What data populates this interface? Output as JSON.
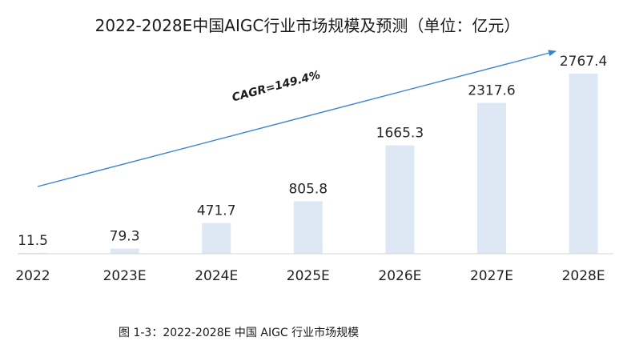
{
  "chart_data": {
    "type": "bar",
    "title": "2022-2028E中国AIGC行业市场规模及预测（单位：亿元）",
    "categories": [
      "2022",
      "2023E",
      "2024E",
      "2025E",
      "2026E",
      "2027E",
      "2028E"
    ],
    "values": [
      11.5,
      79.3,
      471.7,
      805.8,
      1665.3,
      2317.6,
      2767.4
    ],
    "value_labels": [
      "11.5",
      "79.3",
      "471.7",
      "805.8",
      "1665.3",
      "2317.6",
      "2767.4"
    ],
    "xlabel": "",
    "ylabel": "",
    "ylim": [
      0,
      2767.4
    ],
    "grid": false,
    "legend": "none",
    "annotation": "CAGR=149.4%",
    "bar_color": "#dde8f4",
    "trend_arrow_color": "#3a84d4",
    "axis_color": "#d4d4d4"
  },
  "caption": "图 1-3：2022-2028E 中国 AIGC 行业市场规模"
}
